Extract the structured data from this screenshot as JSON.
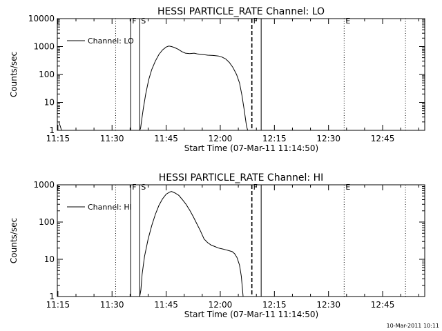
{
  "chart_data": [
    {
      "type": "line",
      "title": "HESSI PARTICLE_RATE Channel: LO",
      "xlabel": "Start Time (07-Mar-11 11:14:50)",
      "ylabel": "Counts/sec",
      "yscale": "log",
      "xlim": [
        "11:14:50",
        "12:56:40"
      ],
      "ylim": [
        1,
        10000
      ],
      "x_ticks": [
        "11:15",
        "11:30",
        "11:45",
        "12:00",
        "12:15",
        "12:30",
        "12:45"
      ],
      "y_ticks": [
        "1",
        "10",
        "100",
        "1000",
        "10000"
      ],
      "legend": {
        "entries": [
          "Channel: LO"
        ],
        "position": "top-left"
      },
      "grid": false,
      "series": [
        {
          "name": "Channel: LO",
          "segments": [
            [
              [
                "11:15:15",
                2.0
              ],
              [
                "11:15:35",
                1.5
              ],
              [
                "11:16:00",
                1.0
              ]
            ],
            [
              [
                "11:37:40",
                1.0
              ],
              [
                "11:37:55",
                1.2
              ],
              [
                "11:38:15",
                2.5
              ],
              [
                "11:38:40",
                6.0
              ],
              [
                "11:39:20",
                20
              ],
              [
                "11:40:10",
                65
              ],
              [
                "11:41:00",
                150
              ],
              [
                "11:42:00",
                300
              ],
              [
                "11:43:00",
                520
              ],
              [
                "11:44:00",
                760
              ],
              [
                "11:45:00",
                960
              ],
              [
                "11:45:45",
                1040
              ],
              [
                "11:46:30",
                1000
              ],
              [
                "11:47:20",
                920
              ],
              [
                "11:48:20",
                800
              ],
              [
                "11:49:20",
                660
              ],
              [
                "11:50:20",
                580
              ],
              [
                "11:51:30",
                560
              ],
              [
                "11:52:45",
                580
              ],
              [
                "11:53:45",
                540
              ],
              [
                "11:55:00",
                520
              ],
              [
                "11:56:30",
                490
              ],
              [
                "11:58:00",
                480
              ],
              [
                "11:59:30",
                460
              ],
              [
                "12:00:30",
                420
              ],
              [
                "12:01:30",
                360
              ],
              [
                "12:02:30",
                270
              ],
              [
                "12:03:30",
                180
              ],
              [
                "12:04:30",
                100
              ],
              [
                "12:05:20",
                50
              ],
              [
                "12:06:00",
                18
              ],
              [
                "12:06:40",
                5
              ],
              [
                "12:07:15",
                1.5
              ],
              [
                "12:07:35",
                1.0
              ]
            ]
          ]
        }
      ],
      "markers": [
        {
          "time": "11:31:00",
          "label": "",
          "style": "dotted"
        },
        {
          "time": "11:35:10",
          "label": "F",
          "style": "solid"
        },
        {
          "time": "11:37:40",
          "label": "S",
          "style": "solid"
        },
        {
          "time": "12:08:45",
          "label": "F",
          "style": "dashed"
        },
        {
          "time": "12:11:20",
          "label": "",
          "style": "solid"
        },
        {
          "time": "12:34:20",
          "label": "E",
          "style": "dotted"
        },
        {
          "time": "12:51:20",
          "label": "",
          "style": "dotted"
        }
      ]
    },
    {
      "type": "line",
      "title": "HESSI PARTICLE_RATE Channel: HI",
      "xlabel": "Start Time (07-Mar-11 11:14:50)",
      "ylabel": "Counts/sec",
      "yscale": "log",
      "xlim": [
        "11:14:50",
        "12:56:40"
      ],
      "ylim": [
        1,
        1000
      ],
      "x_ticks": [
        "11:15",
        "11:30",
        "11:45",
        "12:00",
        "12:15",
        "12:30",
        "12:45"
      ],
      "y_ticks": [
        "1",
        "10",
        "100",
        "1000"
      ],
      "legend": {
        "entries": [
          "Channel: HI"
        ],
        "position": "top-left"
      },
      "grid": false,
      "series": [
        {
          "name": "Channel: HI",
          "segments": [
            [
              [
                "11:37:40",
                1.0
              ],
              [
                "11:38:00",
                1.5
              ],
              [
                "11:38:20",
                4.0
              ],
              [
                "11:39:00",
                12
              ],
              [
                "11:40:00",
                35
              ],
              [
                "11:41:00",
                80
              ],
              [
                "11:42:00",
                160
              ],
              [
                "11:43:00",
                280
              ],
              [
                "11:44:00",
                420
              ],
              [
                "11:45:00",
                560
              ],
              [
                "11:46:00",
                640
              ],
              [
                "11:46:30",
                660
              ],
              [
                "11:47:30",
                600
              ],
              [
                "11:48:30",
                520
              ],
              [
                "11:49:30",
                400
              ],
              [
                "11:50:30",
                300
              ],
              [
                "11:51:30",
                210
              ],
              [
                "11:52:30",
                140
              ],
              [
                "11:53:30",
                90
              ],
              [
                "11:54:30",
                58
              ],
              [
                "11:55:30",
                35
              ],
              [
                "11:56:30",
                28
              ],
              [
                "11:57:30",
                24
              ],
              [
                "11:58:30",
                22
              ],
              [
                "11:59:30",
                20
              ],
              [
                "12:00:30",
                19
              ],
              [
                "12:01:30",
                18
              ],
              [
                "12:02:30",
                17
              ],
              [
                "12:03:20",
                16
              ],
              [
                "12:04:00",
                14
              ],
              [
                "12:04:40",
                11
              ],
              [
                "12:05:20",
                7
              ],
              [
                "12:05:50",
                3.5
              ],
              [
                "12:06:10",
                1.5
              ],
              [
                "12:06:20",
                1.0
              ]
            ]
          ]
        }
      ],
      "markers": [
        {
          "time": "11:31:00",
          "label": "",
          "style": "dotted"
        },
        {
          "time": "11:35:10",
          "label": "F",
          "style": "solid"
        },
        {
          "time": "11:37:40",
          "label": "S",
          "style": "solid"
        },
        {
          "time": "12:08:45",
          "label": "F",
          "style": "dashed"
        },
        {
          "time": "12:11:20",
          "label": "",
          "style": "solid"
        },
        {
          "time": "12:34:20",
          "label": "E",
          "style": "dotted"
        },
        {
          "time": "12:51:20",
          "label": "",
          "style": "dotted"
        }
      ]
    }
  ],
  "footer": {
    "timestamp": "10-Mar-2011 10:11"
  }
}
